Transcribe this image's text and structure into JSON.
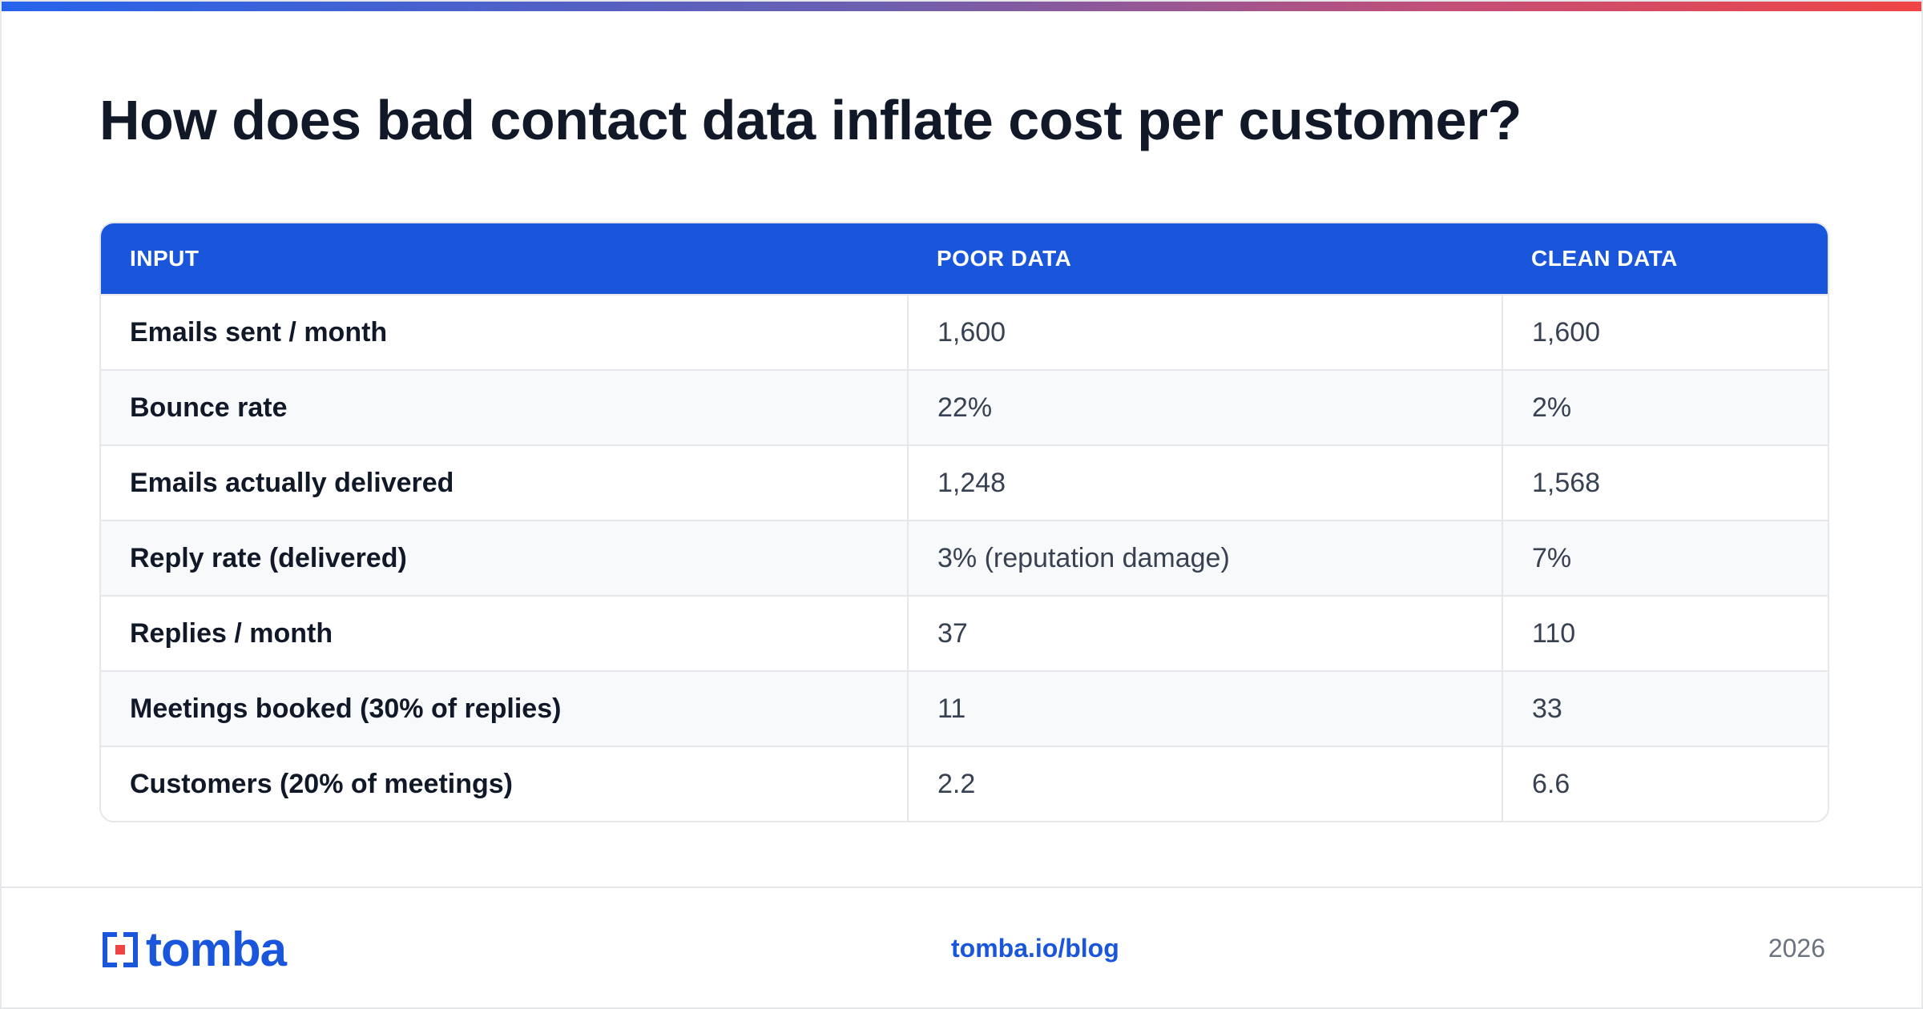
{
  "title": "How does bad contact data inflate cost per customer?",
  "colors": {
    "accent": "#1a56db",
    "gradient_start": "#2563eb",
    "gradient_end": "#ef4444"
  },
  "table": {
    "headers": [
      "INPUT",
      "POOR DATA",
      "CLEAN DATA"
    ],
    "rows": [
      {
        "input": "Emails sent / month",
        "poor": "1,600",
        "clean": "1,600"
      },
      {
        "input": "Bounce rate",
        "poor": "22%",
        "clean": "2%"
      },
      {
        "input": "Emails actually delivered",
        "poor": "1,248",
        "clean": "1,568"
      },
      {
        "input": "Reply rate (delivered)",
        "poor": "3% (reputation damage)",
        "clean": "7%"
      },
      {
        "input": "Replies / month",
        "poor": "37",
        "clean": "110"
      },
      {
        "input": "Meetings booked (30% of replies)",
        "poor": "11",
        "clean": "33"
      },
      {
        "input": "Customers (20% of meetings)",
        "poor": "2.2",
        "clean": "6.6"
      }
    ]
  },
  "footer": {
    "logo_text": "tomba",
    "logo_icon": "tomba-logo-icon",
    "link": "tomba.io/blog",
    "year": "2026"
  }
}
